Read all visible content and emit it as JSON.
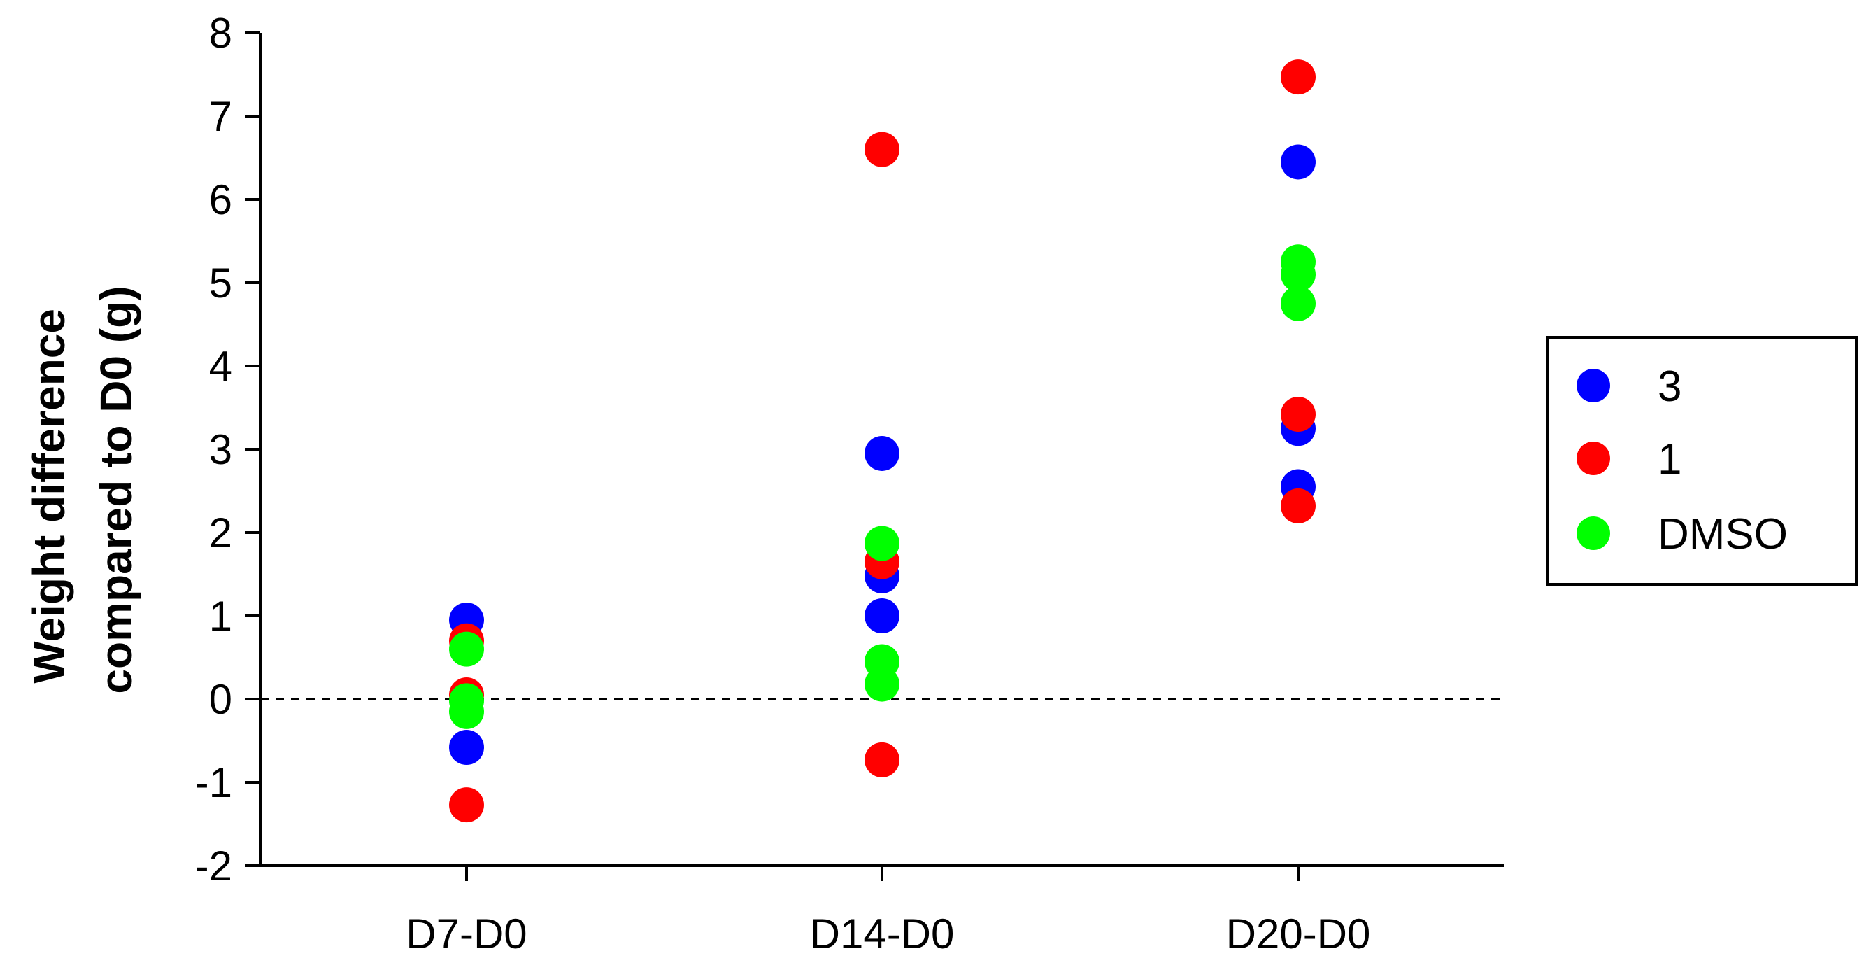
{
  "chart_data": {
    "type": "scatter",
    "title": "",
    "xlabel": "",
    "ylabel": [
      "Weight difference",
      "compared to D0 (g)"
    ],
    "categories": [
      "D7-D0",
      "D14-D0",
      "D20-D0"
    ],
    "yticks": [
      "-2",
      "-1",
      "0",
      "1",
      "2",
      "3",
      "4",
      "5",
      "6",
      "7",
      "8"
    ],
    "ylim": [
      -2,
      8
    ],
    "reference_line": {
      "y": 0,
      "style": "dashed"
    },
    "legend": {
      "placement": "right"
    },
    "series": [
      {
        "name": "3",
        "color": "#0000ff",
        "points": [
          {
            "category": "D7-D0",
            "value": 0.95
          },
          {
            "category": "D7-D0",
            "value": -0.58
          },
          {
            "category": "D14-D0",
            "value": 2.95
          },
          {
            "category": "D14-D0",
            "value": 1.48
          },
          {
            "category": "D14-D0",
            "value": 1.0
          },
          {
            "category": "D20-D0",
            "value": 6.45
          },
          {
            "category": "D20-D0",
            "value": 3.25
          },
          {
            "category": "D20-D0",
            "value": 2.55
          }
        ]
      },
      {
        "name": "1",
        "color": "#ff0000",
        "points": [
          {
            "category": "D7-D0",
            "value": 0.7
          },
          {
            "category": "D7-D0",
            "value": 0.05
          },
          {
            "category": "D7-D0",
            "value": -1.27
          },
          {
            "category": "D14-D0",
            "value": 6.6
          },
          {
            "category": "D14-D0",
            "value": 1.65
          },
          {
            "category": "D14-D0",
            "value": -0.73
          },
          {
            "category": "D20-D0",
            "value": 7.47
          },
          {
            "category": "D20-D0",
            "value": 3.42
          },
          {
            "category": "D20-D0",
            "value": 2.32
          }
        ]
      },
      {
        "name": "DMSO",
        "color": "#00ff00",
        "points": [
          {
            "category": "D7-D0",
            "value": 0.6
          },
          {
            "category": "D7-D0",
            "value": -0.02
          },
          {
            "category": "D7-D0",
            "value": -0.15
          },
          {
            "category": "D14-D0",
            "value": 1.87
          },
          {
            "category": "D14-D0",
            "value": 0.45
          },
          {
            "category": "D14-D0",
            "value": 0.18
          },
          {
            "category": "D20-D0",
            "value": 5.25
          },
          {
            "category": "D20-D0",
            "value": 5.1
          },
          {
            "category": "D20-D0",
            "value": 4.75
          }
        ]
      }
    ]
  }
}
